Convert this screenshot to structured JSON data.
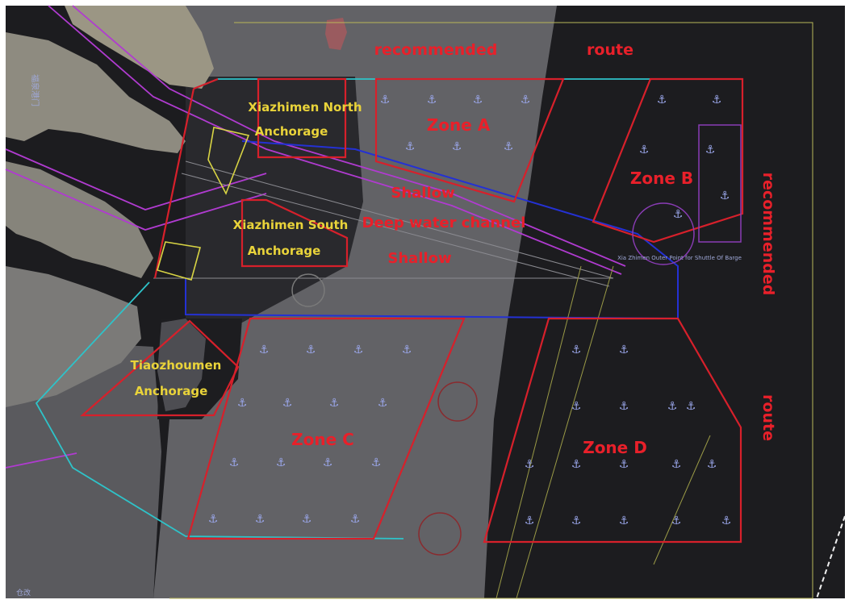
{
  "map": {
    "labels": {
      "recommended_top": "recommended",
      "route_top": "route",
      "recommended_right": "recommended",
      "route_right": "route",
      "xiazhimen_north_1": "Xiazhimen North",
      "xiazhimen_north_2": "Anchorage",
      "xiazhimen_south_1": "Xiazhimen South",
      "xiazhimen_south_2": "Anchorage",
      "tiaozhoumen_1": "Tiaozhoumen",
      "tiaozhoumen_2": "Anchorage",
      "zone_a": "Zone A",
      "zone_b": "Zone B",
      "zone_c": "Zone C",
      "zone_d": "Zone D",
      "shallow_top": "Shallow",
      "deep_channel": "Deep water channel",
      "shallow_bottom": "Shallow",
      "pilot_point": "Xia Zhimen Outer Point for Shuttle Of Barge",
      "chinese_vertical": "福泉港门",
      "chinese_bottom": "仓改"
    },
    "colors": {
      "sea_dark": "#1c1c1f",
      "shallow_gray": "#606064",
      "land": "#9b9684",
      "zone_red": "#d7202b",
      "cyan": "#2ec3c9",
      "magenta": "#b03bd0",
      "yellow": "#d8d444",
      "navy": "#1f2ccb",
      "label_red": "#e8202a",
      "label_yellow": "#e9d33a",
      "anchor": "#9aa6ea"
    }
  }
}
